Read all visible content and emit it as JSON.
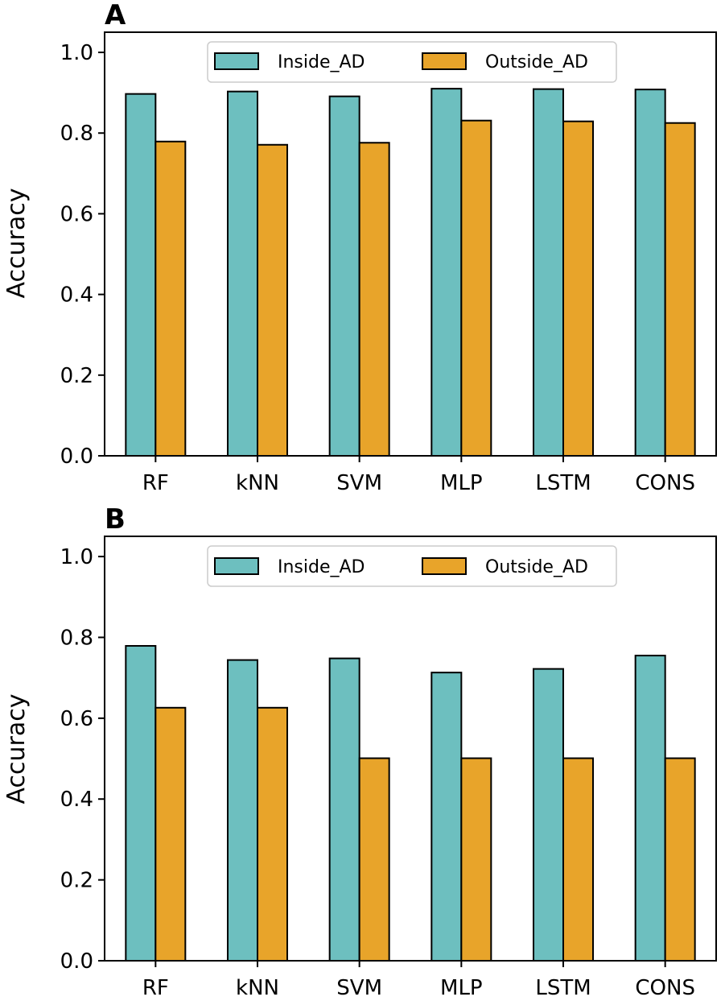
{
  "chart_data": [
    {
      "panel": "A",
      "type": "bar",
      "categories": [
        "RF",
        "kNN",
        "SVM",
        "MLP",
        "LSTM",
        "CONS"
      ],
      "series": [
        {
          "name": "Inside_AD",
          "color": "#6dbfbf",
          "values": [
            0.897,
            0.903,
            0.891,
            0.91,
            0.909,
            0.908
          ]
        },
        {
          "name": "Outside_AD",
          "color": "#e8a42a",
          "values": [
            0.779,
            0.771,
            0.776,
            0.831,
            0.829,
            0.825
          ]
        }
      ],
      "ylabel": "Accuracy",
      "ylim": [
        0,
        1.05
      ],
      "yticks": [
        "0.0",
        "0.2",
        "0.4",
        "0.6",
        "0.8",
        "1.0"
      ],
      "legend": "top-center"
    },
    {
      "panel": "B",
      "type": "bar",
      "categories": [
        "RF",
        "kNN",
        "SVM",
        "MLP",
        "LSTM",
        "CONS"
      ],
      "series": [
        {
          "name": "Inside_AD",
          "color": "#6dbfbf",
          "values": [
            0.779,
            0.744,
            0.748,
            0.713,
            0.722,
            0.755
          ]
        },
        {
          "name": "Outside_AD",
          "color": "#e8a42a",
          "values": [
            0.626,
            0.626,
            0.501,
            0.501,
            0.501,
            0.501
          ]
        }
      ],
      "ylabel": "Accuracy",
      "ylim": [
        0,
        1.05
      ],
      "yticks": [
        "0.0",
        "0.2",
        "0.4",
        "0.6",
        "0.8",
        "1.0"
      ],
      "legend": "top-center"
    }
  ]
}
